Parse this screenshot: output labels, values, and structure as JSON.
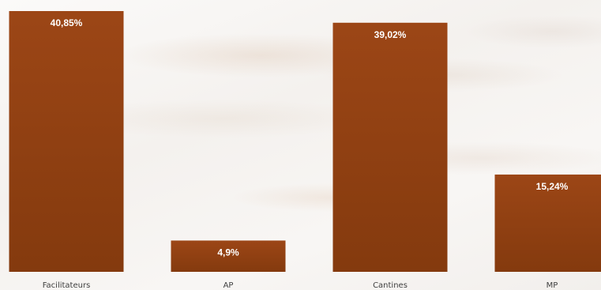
{
  "chart_data": {
    "type": "bar",
    "categories": [
      "Facilitateurs",
      "AP",
      "Cantines",
      "MP"
    ],
    "values": [
      40.85,
      4.9,
      39.02,
      15.24
    ],
    "data_labels": [
      "40,85%",
      "4,9%",
      "39,02%",
      "15,24%"
    ],
    "title": "",
    "xlabel": "",
    "ylabel": "",
    "ylim": [
      0,
      42
    ],
    "grid": false,
    "legend": "none",
    "colors": {
      "bar_top": "#9c4616",
      "bar_bottom": "#843a0e",
      "label_text": "#ffffff",
      "tick_text": "#404040"
    }
  }
}
